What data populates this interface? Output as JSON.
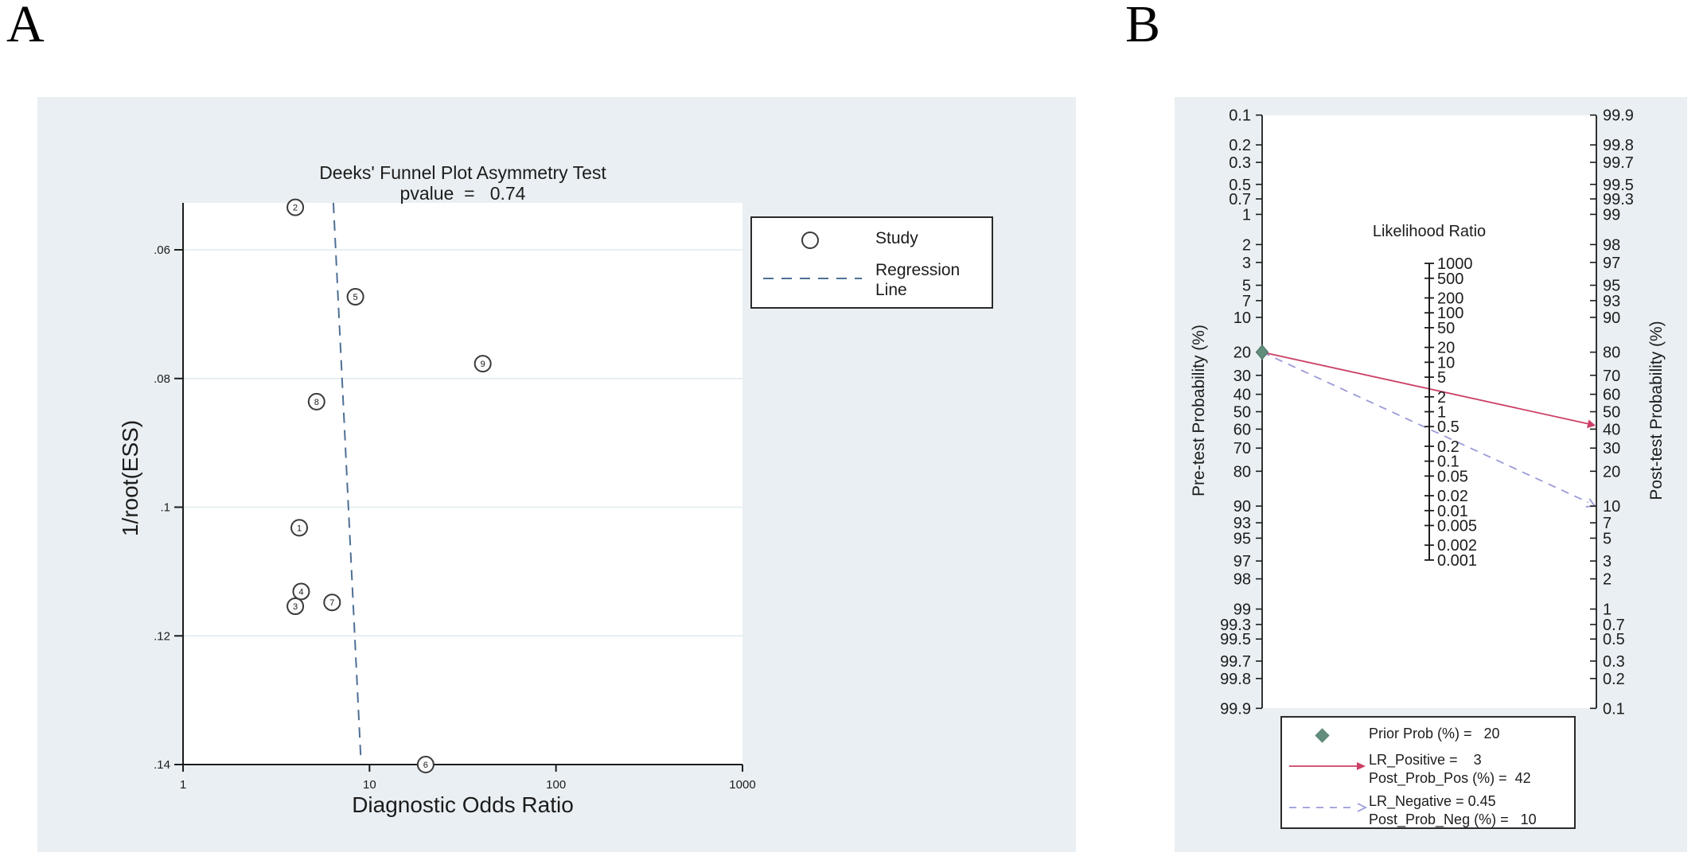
{
  "page": {
    "panel_a_label": "A",
    "panel_b_label": "B"
  },
  "colors": {
    "panel_bg": "#e9eff2",
    "plot_bg": "#ffffff",
    "axis": "#1c1c1c",
    "grid": "#dfeaee",
    "regression_line": "#4d6f94",
    "marker_stroke": "#3a3a3a",
    "marker_fill": "#fbfbfb",
    "lr_positive": "#cc3f66",
    "lr_negative": "#9b9bd9",
    "prior_marker": "#628c7b",
    "legend_border": "#2b2b2b"
  },
  "chart_data": [
    {
      "type": "scatter",
      "title": "Deeks' Funnel Plot Asymmetry Test",
      "subtitle": "pvalue  =   0.74",
      "xlabel": "Diagnostic Odds Ratio",
      "ylabel": "1/root(ESS)",
      "x_scale": "log10",
      "xlim": [
        1,
        1000
      ],
      "ylim_top_bottom": [
        0.0527,
        0.1405
      ],
      "x_ticks": [
        1,
        10,
        100,
        1000
      ],
      "y_ticks": [
        0.06,
        0.08,
        0.1,
        0.12,
        0.14
      ],
      "y_tick_labels": [
        ".06",
        ".08",
        ".1",
        ".12",
        ".14"
      ],
      "grid": "horizontal-only",
      "points": [
        {
          "study": 1,
          "dor": 4.2,
          "inv_root_ess": 0.1032
        },
        {
          "study": 2,
          "dor": 4.0,
          "inv_root_ess": 0.0534
        },
        {
          "study": 3,
          "dor": 4.0,
          "inv_root_ess": 0.1154
        },
        {
          "study": 4,
          "dor": 4.3,
          "inv_root_ess": 0.1131
        },
        {
          "study": 5,
          "dor": 8.4,
          "inv_root_ess": 0.0673
        },
        {
          "study": 6,
          "dor": 20.0,
          "inv_root_ess": 0.14
        },
        {
          "study": 7,
          "dor": 6.3,
          "inv_root_ess": 0.1148
        },
        {
          "study": 8,
          "dor": 5.2,
          "inv_root_ess": 0.0836
        },
        {
          "study": 9,
          "dor": 40.5,
          "inv_root_ess": 0.0777
        }
      ],
      "regression_line": {
        "dor1": 6.4,
        "y1": 0.0527,
        "dor2": 9.0,
        "y2": 0.1396
      },
      "legend": {
        "study_label": "Study",
        "regression_label": "Regression\nLine",
        "position": "upper-right-outside-plot"
      }
    },
    {
      "type": "nomogram",
      "title": "Likelihood Ratio",
      "left_axis_label": "Pre-test Probability (%)",
      "right_axis_label": "Post-test Probability (%)",
      "left_tick_labels": [
        "0.1",
        "0.2",
        "0.3",
        "0.5",
        "0.7",
        "1",
        "2",
        "3",
        "5",
        "7",
        "10",
        "20",
        "30",
        "40",
        "50",
        "60",
        "70",
        "80",
        "90",
        "93",
        "95",
        "97",
        "98",
        "99",
        "99.3",
        "99.5",
        "99.7",
        "99.8",
        "99.9"
      ],
      "right_tick_labels_top_to_bottom": [
        "99.9",
        "99.8",
        "99.7",
        "99.5",
        "99.3",
        "99",
        "98",
        "97",
        "95",
        "93",
        "90",
        "80",
        "70",
        "60",
        "50",
        "40",
        "30",
        "20",
        "10",
        "7",
        "5",
        "3",
        "2",
        "1",
        "0.7",
        "0.5",
        "0.3",
        "0.2",
        "0.1"
      ],
      "lr_tick_labels": [
        "1000",
        "500",
        "200",
        "100",
        "50",
        "20",
        "10",
        "5",
        "2",
        "1",
        "0.5",
        "0.2",
        "0.1",
        "0.05",
        "0.02",
        "0.01",
        "0.005",
        "0.002",
        "0.001"
      ],
      "prior_prob_pct": 20,
      "lr_positive": 3,
      "post_prob_pos_pct": 42,
      "lr_negative": 0.45,
      "post_prob_neg_pct": 10,
      "legend": {
        "prior": "Prior Prob (%) =   20",
        "lr_positive_line1": "LR_Positive =    3",
        "lr_positive_line2": "Post_Prob_Pos (%) =  42",
        "lr_negative_line1": "LR_Negative = 0.45",
        "lr_negative_line2": "Post_Prob_Neg (%) =   10"
      }
    }
  ]
}
